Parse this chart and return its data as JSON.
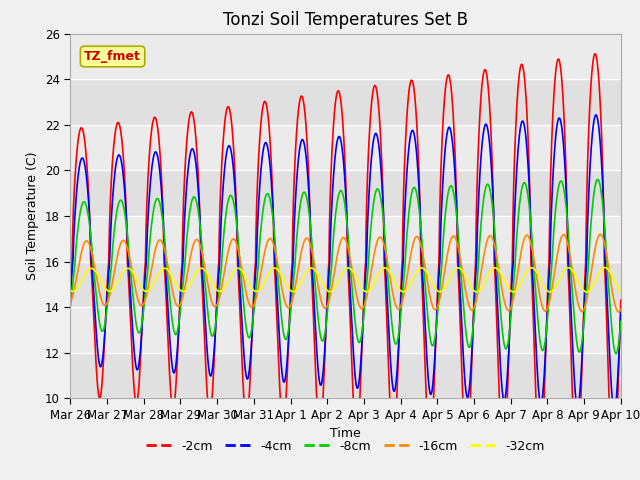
{
  "title": "Tonzi Soil Temperatures Set B",
  "xlabel": "Time",
  "ylabel": "Soil Temperature (C)",
  "ylim": [
    10,
    26
  ],
  "annotation_text": "TZ_fmet",
  "annotation_color": "#cc0000",
  "annotation_bg": "#ffff99",
  "annotation_border": "#aaaa00",
  "plot_bg": "#e8e8e8",
  "fig_bg": "#f0f0f0",
  "series_colors": {
    "-2cm": "#ff0000",
    "-4cm": "#0000ff",
    "-8cm": "#00cc00",
    "-16cm": "#ff8800",
    "-32cm": "#ffff00"
  },
  "tick_labels": [
    "Mar 26",
    "Mar 27",
    "Mar 28",
    "Mar 29",
    "Mar 30",
    "Mar 31",
    "Apr 1",
    "Apr 2",
    "Apr 3",
    "Apr 4",
    "Apr 5",
    "Apr 6",
    "Apr 7",
    "Apr 8",
    "Apr 9",
    "Apr 10"
  ],
  "yticks": [
    10,
    12,
    14,
    16,
    18,
    20,
    22,
    24,
    26
  ]
}
